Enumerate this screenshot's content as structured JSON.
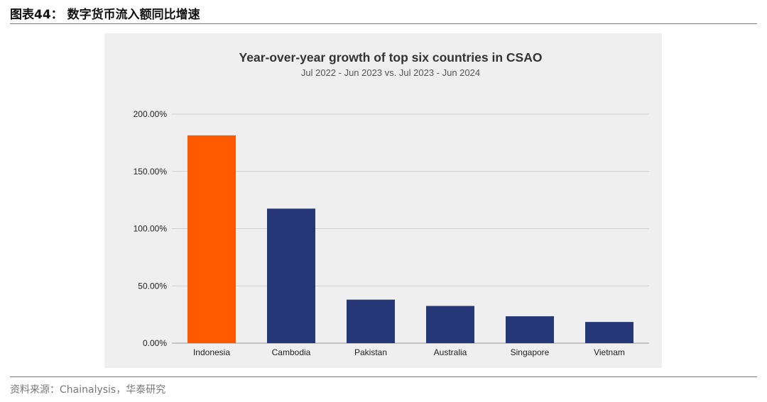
{
  "figure": {
    "header": "图表44：  数字货币流入额同比增速",
    "source": "资料来源：Chainalysis，华泰研究"
  },
  "colors": {
    "highlight": "#ff5a00",
    "bar": "#263777",
    "grid": "#cfcfcf",
    "card_bg": "#efefef"
  },
  "chart_data": {
    "type": "bar",
    "title": "Year-over-year growth of top six countries in CSAO",
    "subtitle": "Jul 2022 - Jun 2023 vs. Jul 2023 - Jun 2024",
    "xlabel": "",
    "ylabel": "",
    "categories": [
      "Indonesia",
      "Cambodia",
      "Pakistan",
      "Australia",
      "Singapore",
      "Vietnam"
    ],
    "values": [
      181.5,
      117.5,
      38.0,
      32.5,
      23.5,
      18.5
    ],
    "highlight_index": 0,
    "ylim": [
      0,
      200
    ],
    "yticks": [
      0,
      50,
      100,
      150,
      200
    ],
    "ytick_labels": [
      "0.00%",
      "50.00%",
      "100.00%",
      "150.00%",
      "200.00%"
    ],
    "grid": true,
    "legend": "none"
  }
}
